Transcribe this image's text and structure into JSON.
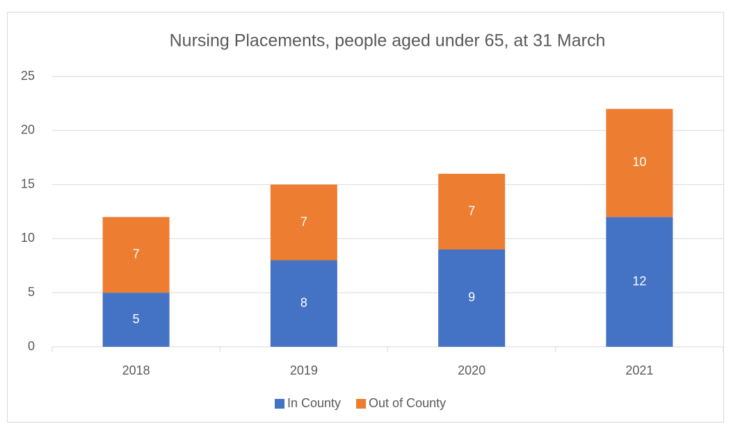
{
  "chart_data": {
    "type": "stacked_bar",
    "title": "Nursing Placements, people aged under 65, at 31 March",
    "categories": [
      "2018",
      "2019",
      "2020",
      "2021"
    ],
    "series": [
      {
        "name": "In County",
        "color": "#4472c4",
        "values": [
          5,
          8,
          9,
          12
        ]
      },
      {
        "name": "Out of County",
        "color": "#ed7d31",
        "values": [
          7,
          7,
          7,
          10
        ]
      }
    ],
    "ylim": [
      0,
      25
    ],
    "yticks": [
      0,
      5,
      10,
      15,
      20,
      25
    ],
    "grid": true,
    "legend": "bottom"
  }
}
